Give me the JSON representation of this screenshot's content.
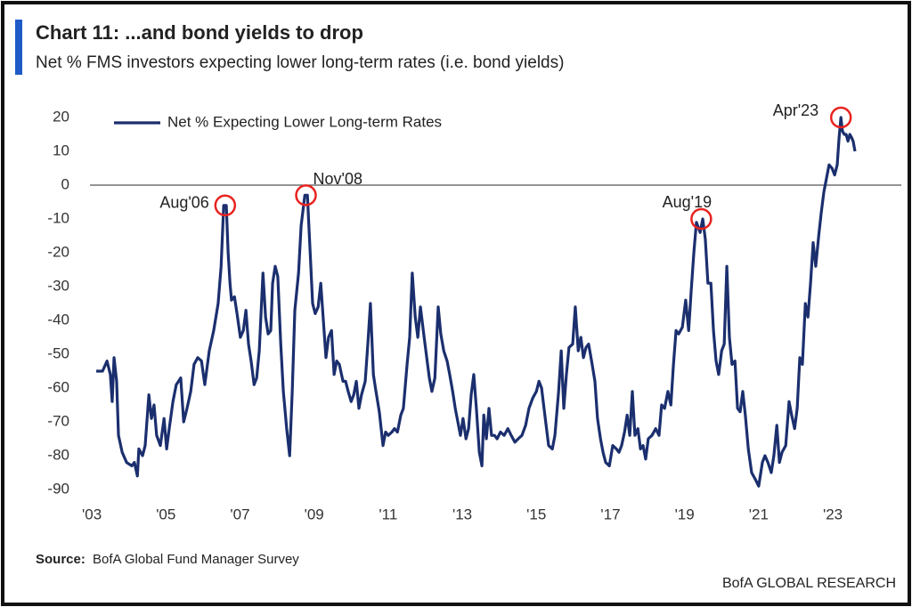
{
  "chart_data": {
    "type": "line",
    "title": "Chart 11: ...and bond yields to drop",
    "subtitle": "Net % FMS investors expecting lower long-term rates (i.e. bond yields)",
    "source_label": "Source:",
    "source": "BofA Global Fund Manager Survey",
    "footer": "BofA GLOBAL RESEARCH",
    "xlim": [
      2002.95,
      2024.85
    ],
    "ylim": [
      -95,
      25
    ],
    "xticks": [
      {
        "value": 2003,
        "label": "'03"
      },
      {
        "value": 2005,
        "label": "'05"
      },
      {
        "value": 2007,
        "label": "'07"
      },
      {
        "value": 2009,
        "label": "'09"
      },
      {
        "value": 2011,
        "label": "'11"
      },
      {
        "value": 2013,
        "label": "'13"
      },
      {
        "value": 2015,
        "label": "'15"
      },
      {
        "value": 2017,
        "label": "'17"
      },
      {
        "value": 2019,
        "label": "'19"
      },
      {
        "value": 2021,
        "label": "'21"
      },
      {
        "value": 2023,
        "label": "'23"
      }
    ],
    "yticks": [
      20,
      10,
      0,
      -10,
      -20,
      -30,
      -40,
      -50,
      -60,
      -70,
      -80,
      -90
    ],
    "reference_line": 0,
    "grid": false,
    "legend": "upper left",
    "annotation_color": "#e8231f",
    "annotations": [
      {
        "text": "Aug'06",
        "x": 2006.6,
        "y": -6
      },
      {
        "text": "Nov'08",
        "x": 2008.78,
        "y": -3
      },
      {
        "text": "Aug'19",
        "x": 2019.45,
        "y": -10
      },
      {
        "text": "Apr'23",
        "x": 2023.22,
        "y": 20
      }
    ],
    "series": [
      {
        "name": "Net % Expecting Lower Long-term Rates",
        "color": "#1b2f6e",
        "x": [
          2003.12,
          2003.29,
          2003.41,
          2003.5,
          2003.55,
          2003.6,
          2003.67,
          2003.72,
          2003.82,
          2003.94,
          2004.08,
          2004.15,
          2004.23,
          2004.27,
          2004.37,
          2004.44,
          2004.54,
          2004.61,
          2004.68,
          2004.75,
          2004.85,
          2004.95,
          2005.02,
          2005.09,
          2005.19,
          2005.28,
          2005.4,
          2005.48,
          2005.57,
          2005.67,
          2005.76,
          2005.86,
          2005.96,
          2006.05,
          2006.17,
          2006.29,
          2006.41,
          2006.49,
          2006.56,
          2006.63,
          2006.68,
          2006.73,
          2006.77,
          2006.85,
          2006.92,
          2007.01,
          2007.09,
          2007.16,
          2007.23,
          2007.3,
          2007.38,
          2007.45,
          2007.52,
          2007.62,
          2007.69,
          2007.76,
          2007.83,
          2007.88,
          2007.95,
          2008.02,
          2008.1,
          2008.17,
          2008.26,
          2008.34,
          2008.41,
          2008.48,
          2008.58,
          2008.65,
          2008.75,
          2008.82,
          2008.89,
          2008.96,
          2009.03,
          2009.11,
          2009.18,
          2009.25,
          2009.32,
          2009.39,
          2009.47,
          2009.54,
          2009.61,
          2009.68,
          2009.78,
          2009.85,
          2009.92,
          2010.0,
          2010.07,
          2010.14,
          2010.21,
          2010.28,
          2010.38,
          2010.45,
          2010.52,
          2010.6,
          2010.67,
          2010.76,
          2010.86,
          2010.93,
          2011.0,
          2011.1,
          2011.17,
          2011.25,
          2011.34,
          2011.41,
          2011.51,
          2011.58,
          2011.65,
          2011.73,
          2011.8,
          2011.87,
          2011.97,
          2012.04,
          2012.11,
          2012.18,
          2012.26,
          2012.35,
          2012.42,
          2012.5,
          2012.59,
          2012.66,
          2012.74,
          2012.81,
          2012.88,
          2012.95,
          2013.02,
          2013.1,
          2013.17,
          2013.24,
          2013.31,
          2013.38,
          2013.46,
          2013.53,
          2013.58,
          2013.65,
          2013.72,
          2013.79,
          2013.87,
          2013.94,
          2014.03,
          2014.13,
          2014.23,
          2014.32,
          2014.42,
          2014.51,
          2014.61,
          2014.71,
          2014.8,
          2014.9,
          2015.0,
          2015.07,
          2015.14,
          2015.24,
          2015.33,
          2015.43,
          2015.5,
          2015.6,
          2015.67,
          2015.74,
          2015.81,
          2015.88,
          2015.98,
          2016.05,
          2016.13,
          2016.2,
          2016.27,
          2016.34,
          2016.41,
          2016.49,
          2016.58,
          2016.65,
          2016.73,
          2016.8,
          2016.87,
          2016.97,
          2017.06,
          2017.16,
          2017.23,
          2017.3,
          2017.38,
          2017.45,
          2017.52,
          2017.59,
          2017.66,
          2017.74,
          2017.81,
          2017.88,
          2017.95,
          2018.02,
          2018.12,
          2018.22,
          2018.31,
          2018.38,
          2018.46,
          2018.55,
          2018.63,
          2018.7,
          2018.77,
          2018.84,
          2018.94,
          2019.03,
          2019.11,
          2019.18,
          2019.25,
          2019.32,
          2019.42,
          2019.49,
          2019.56,
          2019.63,
          2019.71,
          2019.78,
          2019.85,
          2019.92,
          2020.0,
          2020.07,
          2020.14,
          2020.21,
          2020.28,
          2020.36,
          2020.43,
          2020.5,
          2020.57,
          2020.64,
          2020.72,
          2020.81,
          2020.91,
          2021.0,
          2021.1,
          2021.17,
          2021.25,
          2021.34,
          2021.41,
          2021.49,
          2021.56,
          2021.63,
          2021.73,
          2021.82,
          2021.89,
          2021.97,
          2022.04,
          2022.11,
          2022.18,
          2022.26,
          2022.33,
          2022.4,
          2022.47,
          2022.54,
          2022.62,
          2022.69,
          2022.76,
          2022.83,
          2022.9,
          2022.98,
          2023.05,
          2023.12,
          2023.17,
          2023.22,
          2023.26,
          2023.31,
          2023.36,
          2023.41,
          2023.46,
          2023.51,
          2023.55,
          2023.6
        ],
        "values": [
          -55,
          -55,
          -52,
          -56,
          -64,
          -51,
          -58,
          -74,
          -79,
          -82,
          -83,
          -82,
          -86,
          -78,
          -80,
          -77,
          -62,
          -69,
          -65,
          -74,
          -77,
          -69,
          -78,
          -72,
          -64,
          -59,
          -57,
          -70,
          -66,
          -61,
          -53,
          -51,
          -52,
          -59,
          -49,
          -43,
          -35,
          -24,
          -6,
          -6,
          -20,
          -29,
          -34,
          -33,
          -38,
          -45,
          -43,
          -37,
          -47,
          -52,
          -59,
          -57,
          -49,
          -26,
          -39,
          -44,
          -43,
          -29,
          -24,
          -27,
          -47,
          -61,
          -72,
          -80,
          -61,
          -37,
          -26,
          -12,
          -3,
          -3,
          -19,
          -35,
          -38,
          -36,
          -29,
          -40,
          -51,
          -45,
          -43,
          -56,
          -52,
          -53,
          -58,
          -58,
          -61,
          -64,
          -62,
          -58,
          -66,
          -62,
          -58,
          -47,
          -35,
          -56,
          -61,
          -67,
          -77,
          -73,
          -74,
          -73,
          -72,
          -73,
          -68,
          -66,
          -53,
          -45,
          -26,
          -39,
          -45,
          -36,
          -45,
          -51,
          -57,
          -61,
          -57,
          -36,
          -44,
          -49,
          -52,
          -56,
          -61,
          -66,
          -70,
          -74,
          -69,
          -75,
          -72,
          -62,
          -56,
          -66,
          -79,
          -83,
          -68,
          -75,
          -66,
          -74,
          -74,
          -75,
          -73,
          -74,
          -72,
          -74,
          -76,
          -75,
          -74,
          -71,
          -66,
          -63,
          -61,
          -58,
          -60,
          -69,
          -77,
          -78,
          -74,
          -61,
          -49,
          -66,
          -56,
          -48,
          -47,
          -36,
          -49,
          -45,
          -51,
          -48,
          -47,
          -52,
          -58,
          -69,
          -75,
          -79,
          -82,
          -83,
          -77,
          -78,
          -79,
          -77,
          -73,
          -68,
          -74,
          -61,
          -74,
          -72,
          -78,
          -77,
          -81,
          -75,
          -74,
          -72,
          -74,
          -65,
          -66,
          -61,
          -65,
          -53,
          -43,
          -44,
          -42,
          -34,
          -43,
          -31,
          -20,
          -11,
          -14,
          -10,
          -16,
          -29,
          -29,
          -43,
          -52,
          -56,
          -49,
          -47,
          -24,
          -45,
          -53,
          -52,
          -66,
          -67,
          -61,
          -68,
          -78,
          -85,
          -87,
          -89,
          -82,
          -80,
          -82,
          -85,
          -80,
          -71,
          -82,
          -79,
          -77,
          -64,
          -68,
          -72,
          -66,
          -51,
          -53,
          -35,
          -39,
          -29,
          -17,
          -24,
          -15,
          -8,
          -2,
          2,
          6,
          5,
          3,
          6,
          14,
          20,
          16,
          15,
          15,
          13,
          15,
          14,
          13,
          10
        ]
      }
    ]
  }
}
